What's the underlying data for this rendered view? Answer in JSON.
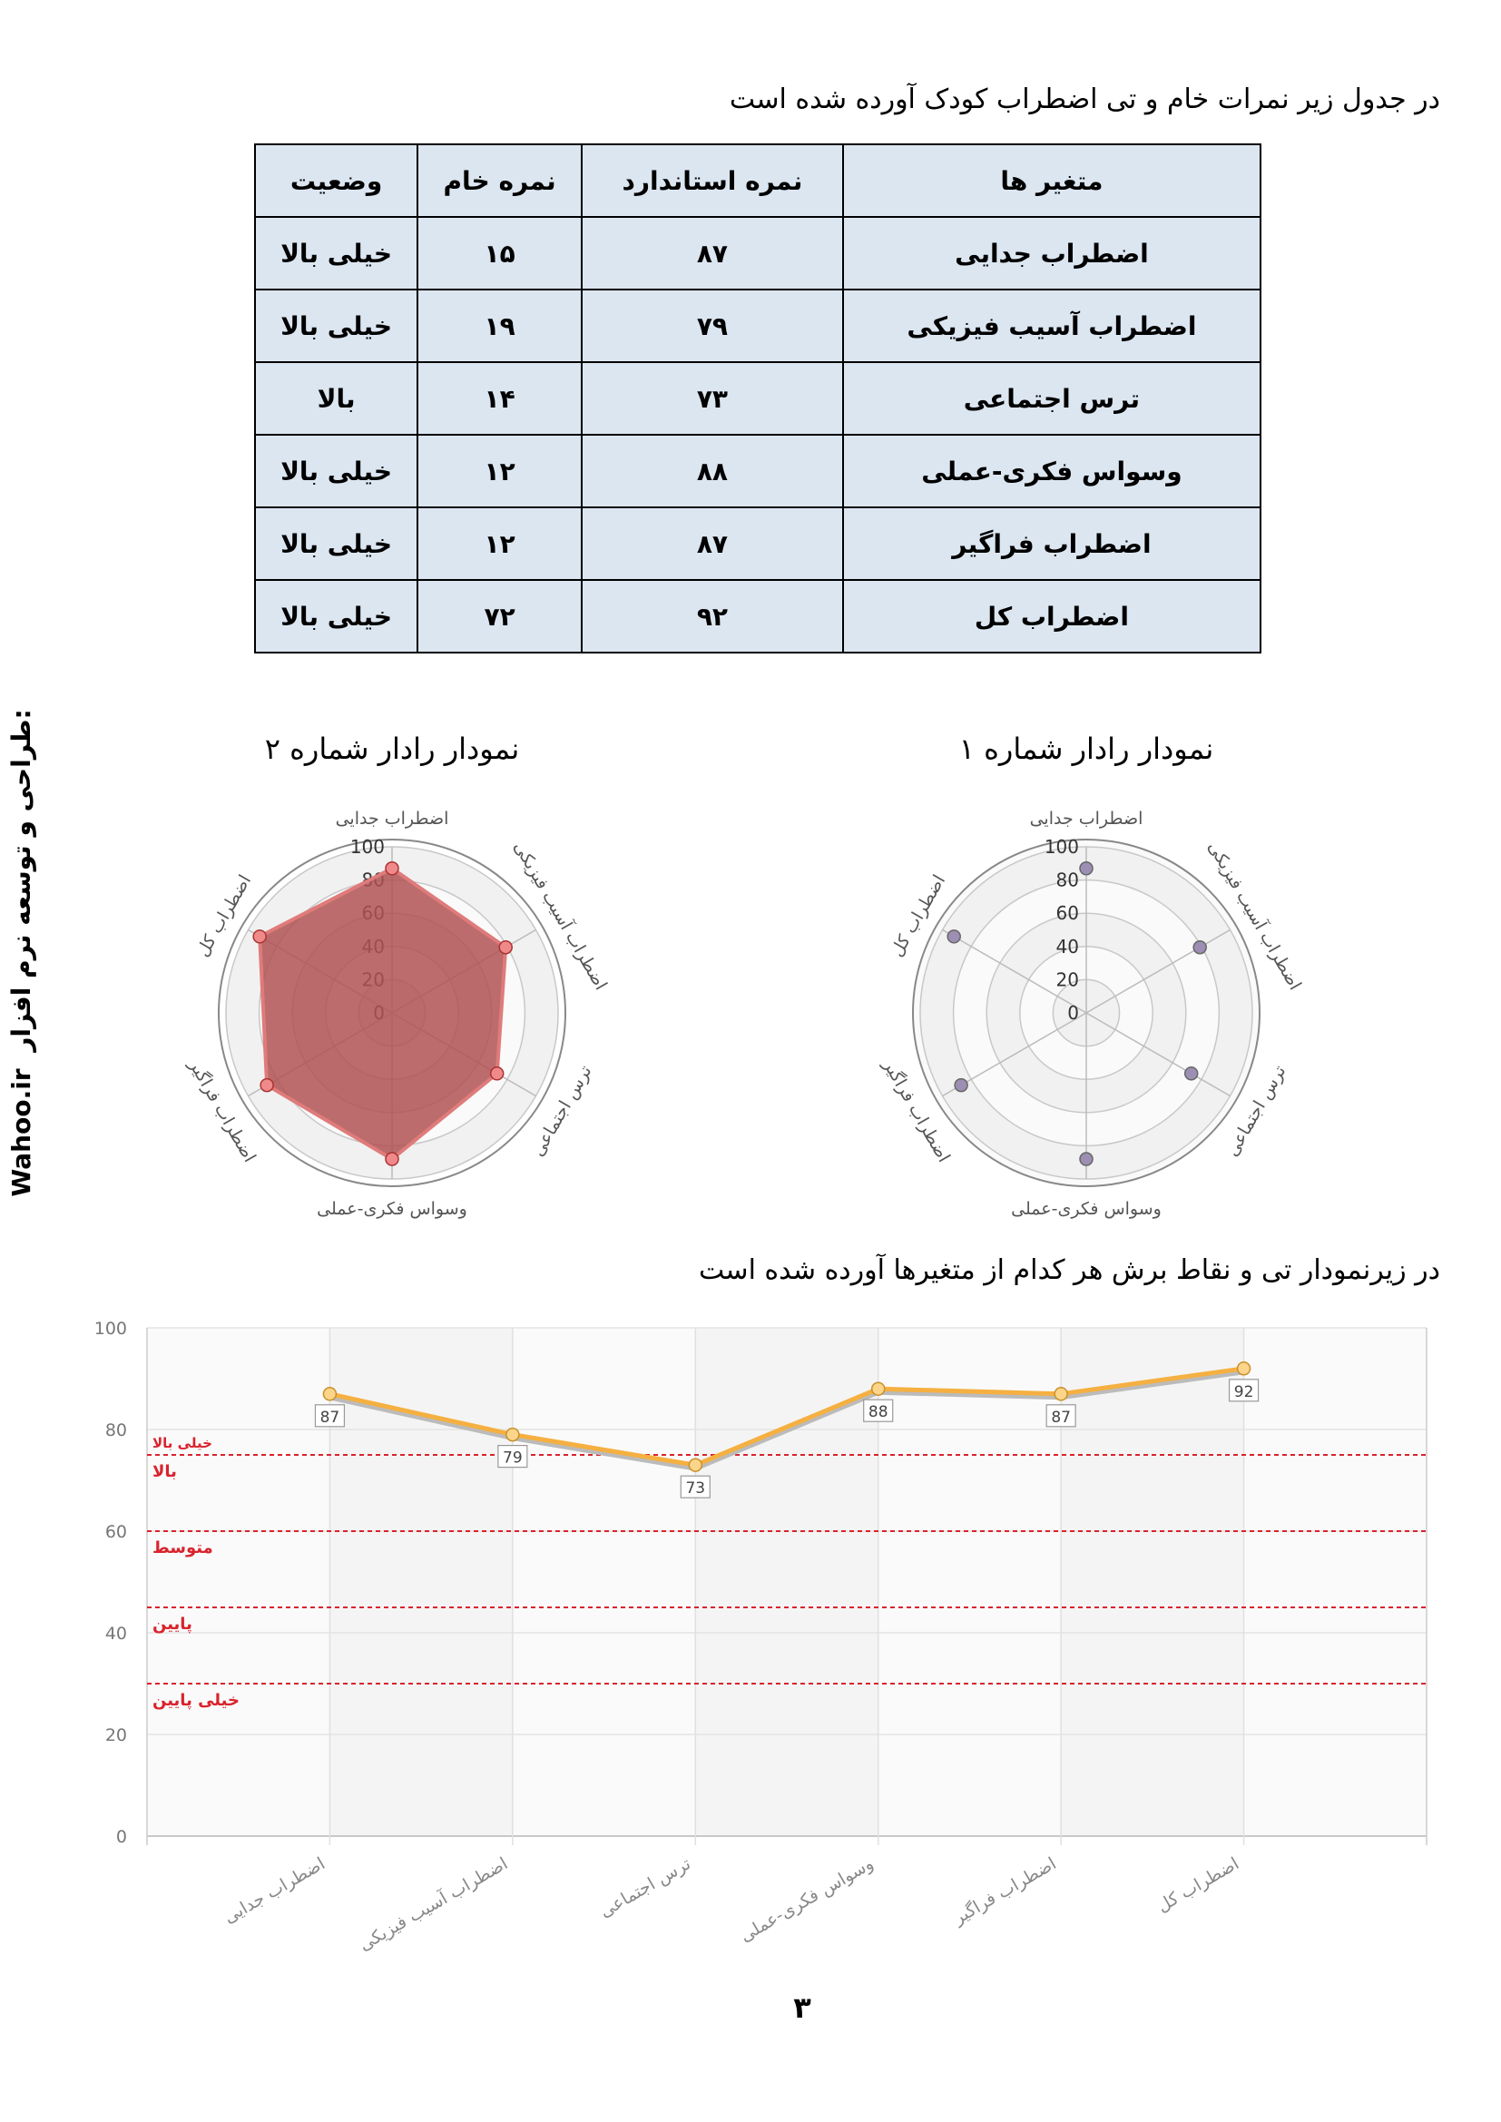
{
  "intro": "در جدول زیر نمرات خام و تی اضطراب کودک آورده شده است",
  "table": {
    "header": [
      "متغیر ها",
      "نمره استاندارد",
      "نمره خام",
      "وضعیت"
    ],
    "rows": [
      [
        "اضطراب جدایی",
        "۸۷",
        "۱۵",
        "خیلی بالا"
      ],
      [
        "اضطراب آسیب فیزیکی",
        "۷۹",
        "۱۹",
        "خیلی بالا"
      ],
      [
        "ترس اجتماعی",
        "۷۳",
        "۱۴",
        "بالا"
      ],
      [
        "وسواس فکری-عملی",
        "۸۸",
        "۱۲",
        "خیلی بالا"
      ],
      [
        "اضطراب فراگیر",
        "۸۷",
        "۱۲",
        "خیلی بالا"
      ],
      [
        "اضطراب کل",
        "۹۲",
        "۷۲",
        "خیلی بالا"
      ]
    ]
  },
  "chart_data": [
    {
      "type": "radar",
      "title": "نمودار رادار شماره ۱",
      "categories": [
        "اضطراب جدایی",
        "اضطراب آسیب فیزیکی",
        "ترس اجتماعی",
        "وسواس فکری-عملی",
        "اضطراب فراگیر",
        "اضطراب کل"
      ],
      "values": [
        87,
        79,
        73,
        88,
        87,
        92
      ],
      "rlim": [
        0,
        100
      ],
      "rticks": [
        0,
        20,
        40,
        60,
        80,
        100
      ],
      "color": "#9d8fb3",
      "fill": false
    },
    {
      "type": "radar",
      "title": "نمودار رادار شماره ۲",
      "categories": [
        "اضطراب جدایی",
        "اضطراب آسیب فیزیکی",
        "ترس اجتماعی",
        "وسواس فکری-عملی",
        "اضطراب فراگیر",
        "اضطراب کل"
      ],
      "values": [
        87,
        79,
        73,
        88,
        87,
        92
      ],
      "rlim": [
        0,
        100
      ],
      "rticks": [
        0,
        20,
        40,
        60,
        80,
        100
      ],
      "color": "#b05252",
      "fill": true
    },
    {
      "type": "line",
      "categories": [
        "اضطراب جدایی",
        "اضطراب آسیب فیزیکی",
        "ترس اجتماعی",
        "وسواس فکری-عملی",
        "اضطراب فراگیر",
        "اضطراب کل"
      ],
      "values": [
        87,
        79,
        73,
        88,
        87,
        92
      ],
      "ylim": [
        0,
        100
      ],
      "yticks": [
        0,
        20,
        40,
        60,
        80,
        100
      ],
      "color": "#f5b041",
      "grid": true,
      "reference_lines": [
        75,
        60,
        45,
        30
      ],
      "reference_color": "#d9232d",
      "band_labels": [
        "خیلی بالا",
        "بالا",
        "متوسط",
        "پایین",
        "خیلی پایین"
      ]
    }
  ],
  "section_title": "در زیرنمودار تی و  نقاط برش هر کدام از متغیرها آورده شده است",
  "side_text": "طراحی و توسعه نرم افزار:",
  "side_link": "Wahoo.ir",
  "page_number": "۳"
}
